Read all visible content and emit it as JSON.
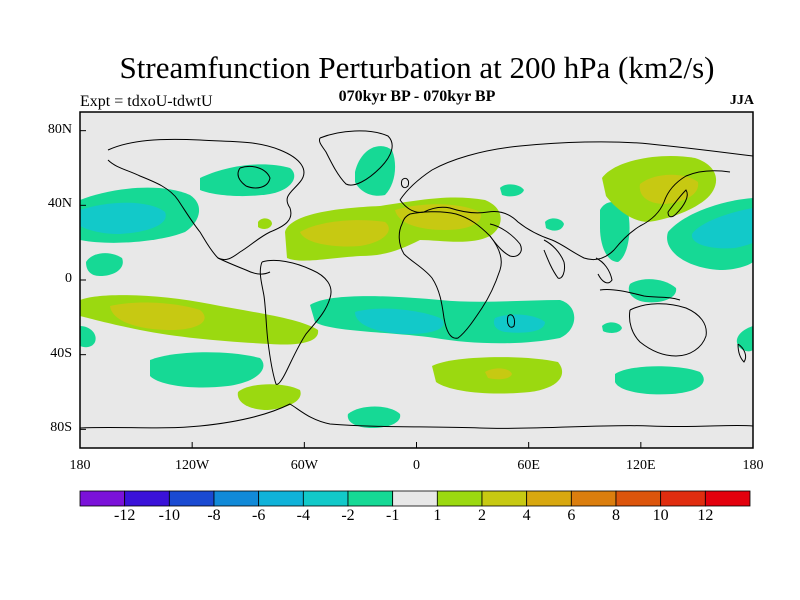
{
  "header": {
    "title": "Streamfunction Perturbation at 200 hPa (km2/s)",
    "subtitle": "070kyr BP - 070kyr BP",
    "experiment": "Expt = tdxoU-tdwtU",
    "season": "JJA"
  },
  "axes": {
    "y_ticks": [
      {
        "lat": 80,
        "label": "80N"
      },
      {
        "lat": 40,
        "label": "40N"
      },
      {
        "lat": 0,
        "label": "0"
      },
      {
        "lat": -40,
        "label": "40S"
      },
      {
        "lat": -80,
        "label": "80S"
      }
    ],
    "x_ticks": [
      {
        "lon": -180,
        "label": "180"
      },
      {
        "lon": -120,
        "label": "120W"
      },
      {
        "lon": -60,
        "label": "60W"
      },
      {
        "lon": 0,
        "label": "0"
      },
      {
        "lon": 60,
        "label": "60E"
      },
      {
        "lon": 120,
        "label": "120E"
      },
      {
        "lon": 180,
        "label": "180"
      }
    ],
    "lon_range": [
      -180,
      180
    ],
    "lat_range": [
      -90,
      90
    ]
  },
  "colorbar": {
    "colors": [
      "#7b12d9",
      "#3a12d9",
      "#1a4ad2",
      "#118ad8",
      "#0fb2d9",
      "#12c9c9",
      "#16d995",
      "#e8e8e8",
      "#9bd910",
      "#c7c912",
      "#d8a80f",
      "#db7e0e",
      "#dc550c",
      "#e02d0f",
      "#e3000d"
    ],
    "labels": [
      "-12",
      "-10",
      "-8",
      "-6",
      "-4",
      "-2",
      "-1",
      "1",
      "2",
      "4",
      "6",
      "8",
      "10",
      "12"
    ]
  },
  "map_colors": {
    "neutral": "#e8e8e8",
    "neg1": "#16d995",
    "neg2": "#12c9c9",
    "pos1": "#9bd910",
    "pos2": "#c7c912"
  }
}
